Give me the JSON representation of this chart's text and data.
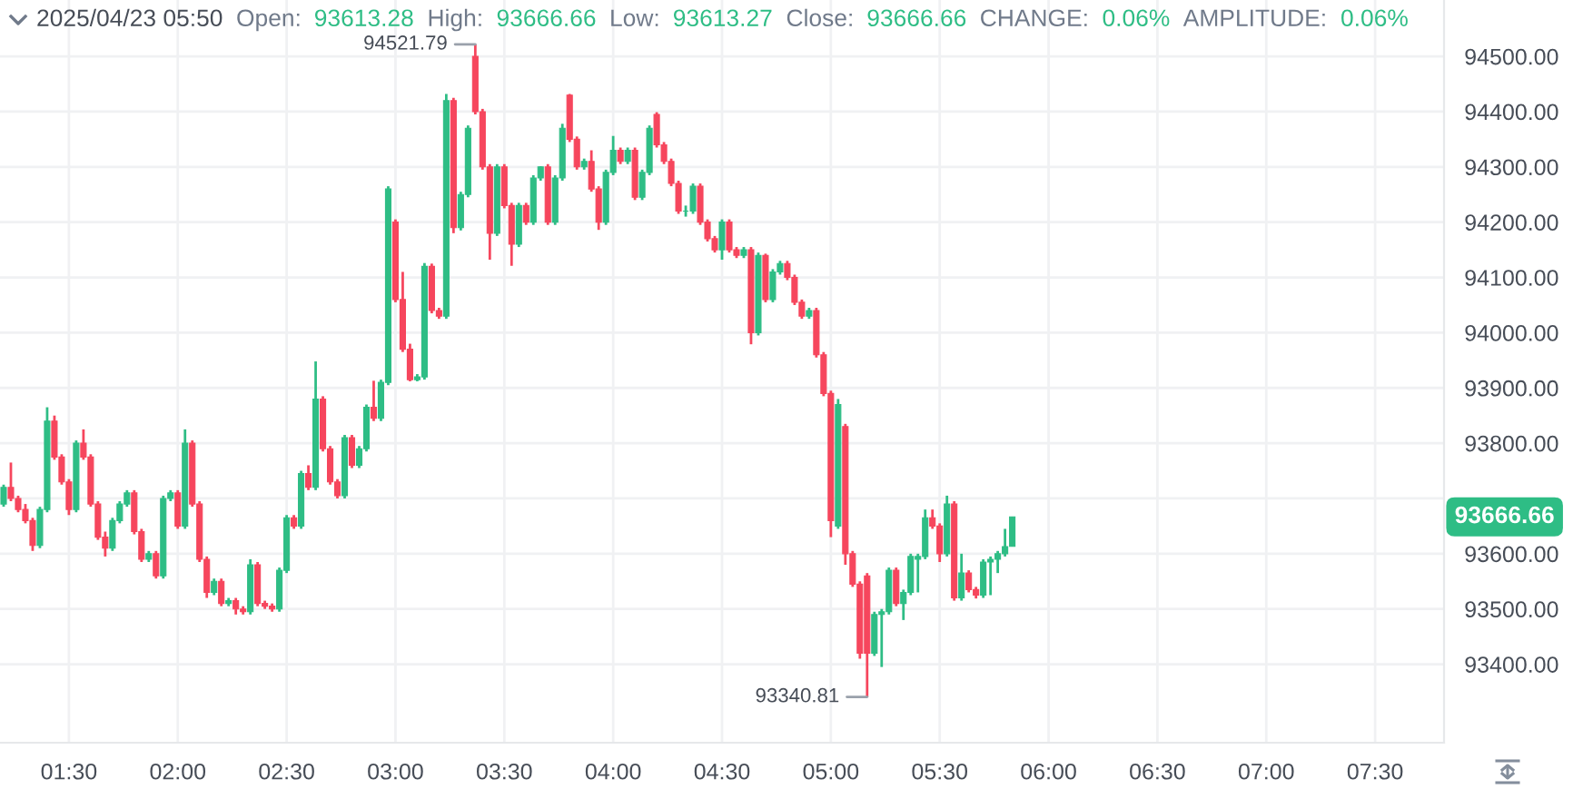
{
  "chart_data": {
    "type": "candlestick",
    "title": "2025/04/23 05:50",
    "x": [
      "2025-04-23T01:12",
      "2025-04-23T01:14",
      "2025-04-23T01:16",
      "2025-04-23T01:18",
      "2025-04-23T01:20",
      "2025-04-23T01:22",
      "2025-04-23T01:24",
      "2025-04-23T01:26",
      "2025-04-23T01:28",
      "2025-04-23T01:30",
      "2025-04-23T01:32",
      "2025-04-23T01:34",
      "2025-04-23T01:36",
      "2025-04-23T01:38",
      "2025-04-23T01:40",
      "2025-04-23T01:42",
      "2025-04-23T01:44",
      "2025-04-23T01:46",
      "2025-04-23T01:48",
      "2025-04-23T01:50",
      "2025-04-23T01:52",
      "2025-04-23T01:54",
      "2025-04-23T01:56",
      "2025-04-23T01:58",
      "2025-04-23T02:00",
      "2025-04-23T02:02",
      "2025-04-23T02:04",
      "2025-04-23T02:06",
      "2025-04-23T02:08",
      "2025-04-23T02:10",
      "2025-04-23T02:12",
      "2025-04-23T02:14",
      "2025-04-23T02:16",
      "2025-04-23T02:18",
      "2025-04-23T02:20",
      "2025-04-23T02:22",
      "2025-04-23T02:24",
      "2025-04-23T02:26",
      "2025-04-23T02:28",
      "2025-04-23T02:30",
      "2025-04-23T02:32",
      "2025-04-23T02:34",
      "2025-04-23T02:36",
      "2025-04-23T02:38",
      "2025-04-23T02:40",
      "2025-04-23T02:42",
      "2025-04-23T02:44",
      "2025-04-23T02:46",
      "2025-04-23T02:48",
      "2025-04-23T02:50",
      "2025-04-23T02:52",
      "2025-04-23T02:54",
      "2025-04-23T02:56",
      "2025-04-23T02:58",
      "2025-04-23T03:00",
      "2025-04-23T03:02",
      "2025-04-23T03:04",
      "2025-04-23T03:06",
      "2025-04-23T03:08",
      "2025-04-23T03:10",
      "2025-04-23T03:12",
      "2025-04-23T03:14",
      "2025-04-23T03:16",
      "2025-04-23T03:18",
      "2025-04-23T03:20",
      "2025-04-23T03:22",
      "2025-04-23T03:24",
      "2025-04-23T03:26",
      "2025-04-23T03:28",
      "2025-04-23T03:30",
      "2025-04-23T03:32",
      "2025-04-23T03:34",
      "2025-04-23T03:36",
      "2025-04-23T03:38",
      "2025-04-23T03:40",
      "2025-04-23T03:42",
      "2025-04-23T03:44",
      "2025-04-23T03:46",
      "2025-04-23T03:48",
      "2025-04-23T03:50",
      "2025-04-23T03:52",
      "2025-04-23T03:54",
      "2025-04-23T03:56",
      "2025-04-23T03:58",
      "2025-04-23T04:00",
      "2025-04-23T04:02",
      "2025-04-23T04:04",
      "2025-04-23T04:06",
      "2025-04-23T04:08",
      "2025-04-23T04:10",
      "2025-04-23T04:12",
      "2025-04-23T04:14",
      "2025-04-23T04:16",
      "2025-04-23T04:18",
      "2025-04-23T04:20",
      "2025-04-23T04:22",
      "2025-04-23T04:24",
      "2025-04-23T04:26",
      "2025-04-23T04:28",
      "2025-04-23T04:30",
      "2025-04-23T04:32",
      "2025-04-23T04:34",
      "2025-04-23T04:36",
      "2025-04-23T04:38",
      "2025-04-23T04:40",
      "2025-04-23T04:42",
      "2025-04-23T04:44",
      "2025-04-23T04:46",
      "2025-04-23T04:48",
      "2025-04-23T04:50",
      "2025-04-23T04:52",
      "2025-04-23T04:54",
      "2025-04-23T04:56",
      "2025-04-23T04:58",
      "2025-04-23T05:00",
      "2025-04-23T05:02",
      "2025-04-23T05:04",
      "2025-04-23T05:06",
      "2025-04-23T05:08",
      "2025-04-23T05:10",
      "2025-04-23T05:12",
      "2025-04-23T05:14",
      "2025-04-23T05:16",
      "2025-04-23T05:18",
      "2025-04-23T05:20",
      "2025-04-23T05:22",
      "2025-04-23T05:24",
      "2025-04-23T05:26",
      "2025-04-23T05:28",
      "2025-04-23T05:30",
      "2025-04-23T05:32",
      "2025-04-23T05:34",
      "2025-04-23T05:36",
      "2025-04-23T05:38",
      "2025-04-23T05:40",
      "2025-04-23T05:42",
      "2025-04-23T05:44",
      "2025-04-23T05:46",
      "2025-04-23T05:48",
      "2025-04-23T05:50"
    ],
    "ohlc": [
      [
        93690,
        93725,
        93685,
        93720
      ],
      [
        93720,
        93765,
        93695,
        93700
      ],
      [
        93700,
        93705,
        93675,
        93680
      ],
      [
        93680,
        93690,
        93655,
        93660
      ],
      [
        93660,
        93665,
        93605,
        93615
      ],
      [
        93615,
        93685,
        93610,
        93680
      ],
      [
        93680,
        93865,
        93675,
        93840
      ],
      [
        93840,
        93850,
        93770,
        93775
      ],
      [
        93775,
        93780,
        93725,
        93730
      ],
      [
        93730,
        93735,
        93670,
        93680
      ],
      [
        93680,
        93805,
        93675,
        93800
      ],
      [
        93800,
        93825,
        93770,
        93775
      ],
      [
        93775,
        93780,
        93685,
        93690
      ],
      [
        93690,
        93695,
        93625,
        93630
      ],
      [
        93630,
        93640,
        93595,
        93610
      ],
      [
        93610,
        93665,
        93605,
        93660
      ],
      [
        93660,
        93695,
        93655,
        93690
      ],
      [
        93690,
        93715,
        93685,
        93710
      ],
      [
        93710,
        93715,
        93635,
        93640
      ],
      [
        93640,
        93645,
        93585,
        93590
      ],
      [
        93590,
        93605,
        93585,
        93600
      ],
      [
        93600,
        93605,
        93555,
        93560
      ],
      [
        93560,
        93705,
        93555,
        93700
      ],
      [
        93700,
        93715,
        93695,
        93710
      ],
      [
        93710,
        93715,
        93645,
        93650
      ],
      [
        93650,
        93825,
        93645,
        93800
      ],
      [
        93800,
        93805,
        93685,
        93690
      ],
      [
        93690,
        93695,
        93585,
        93590
      ],
      [
        93590,
        93595,
        93520,
        93530
      ],
      [
        93530,
        93555,
        93525,
        93550
      ],
      [
        93550,
        93555,
        93505,
        93510
      ],
      [
        93510,
        93520,
        93505,
        93515
      ],
      [
        93515,
        93520,
        93490,
        93500
      ],
      [
        93500,
        93505,
        93490,
        93495
      ],
      [
        93495,
        93590,
        93490,
        93580
      ],
      [
        93580,
        93585,
        93505,
        93510
      ],
      [
        93510,
        93515,
        93500,
        93505
      ],
      [
        93505,
        93510,
        93495,
        93500
      ],
      [
        93500,
        93575,
        93495,
        93570
      ],
      [
        93570,
        93670,
        93565,
        93665
      ],
      [
        93665,
        93670,
        93645,
        93650
      ],
      [
        93650,
        93750,
        93645,
        93745
      ],
      [
        93745,
        93760,
        93715,
        93720
      ],
      [
        93720,
        93948,
        93715,
        93880
      ],
      [
        93880,
        93885,
        93785,
        93790
      ],
      [
        93790,
        93795,
        93725,
        93730
      ],
      [
        93730,
        93735,
        93700,
        93705
      ],
      [
        93705,
        93815,
        93700,
        93810
      ],
      [
        93810,
        93815,
        93755,
        93760
      ],
      [
        93760,
        93795,
        93755,
        93790
      ],
      [
        93790,
        93870,
        93785,
        93865
      ],
      [
        93865,
        93913,
        93840,
        93845
      ],
      [
        93845,
        93915,
        93840,
        93910
      ],
      [
        93910,
        94265,
        93905,
        94260
      ],
      [
        94200,
        94205,
        94055,
        94060
      ],
      [
        94060,
        94110,
        93965,
        93970
      ],
      [
        93970,
        93980,
        93912,
        93915
      ],
      [
        93915,
        93925,
        93912,
        93920
      ],
      [
        93920,
        94126,
        93915,
        94120
      ],
      [
        94120,
        94125,
        94035,
        94040
      ],
      [
        94040,
        94045,
        94025,
        94030
      ],
      [
        94030,
        94432,
        94025,
        94420
      ],
      [
        94420,
        94425,
        94180,
        94190
      ],
      [
        94190,
        94255,
        94185,
        94250
      ],
      [
        94250,
        94375,
        94245,
        94370
      ],
      [
        94500,
        94521.79,
        94395,
        94400
      ],
      [
        94400,
        94405,
        94295,
        94300
      ],
      [
        94300,
        94305,
        94132,
        94180
      ],
      [
        94180,
        94305,
        94175,
        94300
      ],
      [
        94300,
        94305,
        94225,
        94230
      ],
      [
        94230,
        94235,
        94121,
        94160
      ],
      [
        94160,
        94235,
        94155,
        94230
      ],
      [
        94230,
        94235,
        94195,
        94200
      ],
      [
        94200,
        94285,
        94195,
        94280
      ],
      [
        94280,
        94301,
        94275,
        94300
      ],
      [
        94300,
        94305,
        94195,
        94200
      ],
      [
        94200,
        94285,
        94195,
        94280
      ],
      [
        94280,
        94378,
        94275,
        94370
      ],
      [
        94430,
        94432,
        94345,
        94350
      ],
      [
        94350,
        94355,
        94295,
        94300
      ],
      [
        94300,
        94315,
        94295,
        94310
      ],
      [
        94310,
        94330,
        94255,
        94260
      ],
      [
        94260,
        94265,
        94186,
        94200
      ],
      [
        94200,
        94295,
        94195,
        94290
      ],
      [
        94290,
        94356,
        94285,
        94330
      ],
      [
        94330,
        94335,
        94305,
        94310
      ],
      [
        94310,
        94335,
        94305,
        94330
      ],
      [
        94330,
        94335,
        94240,
        94245
      ],
      [
        94245,
        94295,
        94240,
        94290
      ],
      [
        94290,
        94375,
        94285,
        94370
      ],
      [
        94395,
        94399,
        94335,
        94340
      ],
      [
        94340,
        94345,
        94305,
        94310
      ],
      [
        94310,
        94315,
        94265,
        94270
      ],
      [
        94270,
        94275,
        94215,
        94220
      ],
      [
        94220,
        94230,
        94210,
        94220
      ],
      [
        94220,
        94270,
        94215,
        94265
      ],
      [
        94265,
        94270,
        94195,
        94200
      ],
      [
        94200,
        94205,
        94165,
        94170
      ],
      [
        94170,
        94175,
        94145,
        94150
      ],
      [
        94150,
        94205,
        94132,
        94200
      ],
      [
        94200,
        94205,
        94145,
        94150
      ],
      [
        94150,
        94155,
        94135,
        94140
      ],
      [
        94140,
        94155,
        94135,
        94150
      ],
      [
        94150,
        94155,
        93979,
        94000
      ],
      [
        94000,
        94145,
        93995,
        94140
      ],
      [
        94140,
        94143,
        94055,
        94060
      ],
      [
        94060,
        94115,
        94055,
        94110
      ],
      [
        94110,
        94130,
        94105,
        94125
      ],
      [
        94125,
        94130,
        94095,
        94100
      ],
      [
        94100,
        94105,
        94050,
        94055
      ],
      [
        94055,
        94060,
        94025,
        94030
      ],
      [
        94030,
        94045,
        94025,
        94040
      ],
      [
        94040,
        94045,
        93955,
        93960
      ],
      [
        93960,
        93965,
        93885,
        93890
      ],
      [
        93890,
        93895,
        93630,
        93660
      ],
      [
        93650,
        93880,
        93645,
        93870
      ],
      [
        93830,
        93835,
        93580,
        93600
      ],
      [
        93600,
        93605,
        93540,
        93545
      ],
      [
        93545,
        93550,
        93410,
        93420
      ],
      [
        93560,
        93565,
        93340.81,
        93420
      ],
      [
        93420,
        93495,
        93415,
        93490
      ],
      [
        93490,
        93500,
        93395,
        93495
      ],
      [
        93495,
        93575,
        93490,
        93570
      ],
      [
        93570,
        93575,
        93505,
        93510
      ],
      [
        93510,
        93535,
        93480,
        93530
      ],
      [
        93530,
        93600,
        93525,
        93595
      ],
      [
        93590,
        93600,
        93530,
        93595
      ],
      [
        93595,
        93680,
        93590,
        93665
      ],
      [
        93665,
        93680,
        93645,
        93650
      ],
      [
        93650,
        93655,
        93585,
        93600
      ],
      [
        93600,
        93705,
        93595,
        93690
      ],
      [
        93690,
        93695,
        93515,
        93520
      ],
      [
        93520,
        93600,
        93515,
        93565
      ],
      [
        93565,
        93570,
        93530,
        93535
      ],
      [
        93535,
        93540,
        93519,
        93525
      ],
      [
        93525,
        93590,
        93520,
        93585
      ],
      [
        93585,
        93595,
        93525,
        93590
      ],
      [
        93590,
        93605,
        93565,
        93600
      ],
      [
        93600,
        93645,
        93595,
        93613
      ],
      [
        93613.28,
        93666.66,
        93613.27,
        93666.66
      ]
    ],
    "colors": [
      "#2ebd85",
      "#f6465d",
      "#f6465d",
      "#f6465d",
      "#f6465d",
      "#2ebd85",
      "#2ebd85",
      "#f6465d",
      "#f6465d",
      "#f6465d",
      "#2ebd85",
      "#f6465d",
      "#f6465d",
      "#f6465d",
      "#f6465d",
      "#2ebd85",
      "#2ebd85",
      "#2ebd85",
      "#f6465d",
      "#f6465d",
      "#2ebd85",
      "#f6465d",
      "#2ebd85",
      "#2ebd85",
      "#f6465d",
      "#2ebd85",
      "#f6465d",
      "#f6465d",
      "#f6465d",
      "#2ebd85",
      "#f6465d",
      "#2ebd85",
      "#f6465d",
      "#f6465d",
      "#2ebd85",
      "#f6465d",
      "#f6465d",
      "#f6465d",
      "#2ebd85",
      "#2ebd85",
      "#f6465d",
      "#2ebd85",
      "#f6465d",
      "#2ebd85",
      "#f6465d",
      "#f6465d",
      "#f6465d",
      "#2ebd85",
      "#f6465d",
      "#2ebd85",
      "#2ebd85",
      "#f6465d",
      "#2ebd85",
      "#2ebd85",
      "#f6465d",
      "#f6465d",
      "#f6465d",
      "#2ebd85",
      "#2ebd85",
      "#f6465d",
      "#f6465d",
      "#2ebd85",
      "#f6465d",
      "#2ebd85",
      "#2ebd85",
      "#f6465d",
      "#f6465d",
      "#f6465d",
      "#2ebd85",
      "#f6465d",
      "#f6465d",
      "#2ebd85",
      "#f6465d",
      "#2ebd85",
      "#2ebd85",
      "#f6465d",
      "#2ebd85",
      "#2ebd85",
      "#f6465d",
      "#f6465d",
      "#2ebd85",
      "#f6465d",
      "#f6465d",
      "#2ebd85",
      "#2ebd85",
      "#f6465d",
      "#2ebd85",
      "#f6465d",
      "#2ebd85",
      "#2ebd85",
      "#f6465d",
      "#f6465d",
      "#f6465d",
      "#f6465d",
      "#2ebd85",
      "#2ebd85",
      "#f6465d",
      "#f6465d",
      "#f6465d",
      "#2ebd85",
      "#f6465d",
      "#f6465d",
      "#2ebd85",
      "#f6465d",
      "#2ebd85",
      "#f6465d",
      "#2ebd85",
      "#2ebd85",
      "#f6465d",
      "#f6465d",
      "#f6465d",
      "#2ebd85",
      "#f6465d",
      "#f6465d",
      "#f6465d",
      "#2ebd85",
      "#f6465d",
      "#f6465d",
      "#f6465d",
      "#f6465d",
      "#2ebd85",
      "#2ebd85",
      "#2ebd85",
      "#f6465d",
      "#2ebd85",
      "#2ebd85",
      "#2ebd85",
      "#2ebd85",
      "#f6465d",
      "#f6465d",
      "#2ebd85",
      "#f6465d",
      "#2ebd85",
      "#f6465d",
      "#f6465d",
      "#2ebd85",
      "#2ebd85",
      "#2ebd85",
      "#2ebd85",
      "#2ebd85"
    ],
    "xlim": [
      "2025-04-23T01:11",
      "2025-04-23T07:49"
    ],
    "xticks": [
      {
        "value": "2025-04-23T01:30",
        "label": "01:30"
      },
      {
        "value": "2025-04-23T02:00",
        "label": "02:00"
      },
      {
        "value": "2025-04-23T02:30",
        "label": "02:30"
      },
      {
        "value": "2025-04-23T03:00",
        "label": "03:00"
      },
      {
        "value": "2025-04-23T03:30",
        "label": "03:30"
      },
      {
        "value": "2025-04-23T04:00",
        "label": "04:00"
      },
      {
        "value": "2025-04-23T04:30",
        "label": "04:30"
      },
      {
        "value": "2025-04-23T05:00",
        "label": "05:00"
      },
      {
        "value": "2025-04-23T05:30",
        "label": "05:30"
      },
      {
        "value": "2025-04-23T06:00",
        "label": "06:00"
      },
      {
        "value": "2025-04-23T06:30",
        "label": "06:30"
      },
      {
        "value": "2025-04-23T07:00",
        "label": "07:00"
      },
      {
        "value": "2025-04-23T07:30",
        "label": "07:30"
      }
    ],
    "ylim": [
      93258,
      94602
    ],
    "yticks": [
      {
        "value": 93400,
        "label": "93400.00"
      },
      {
        "value": 93500,
        "label": "93500.00"
      },
      {
        "value": 93600,
        "label": "93600.00"
      },
      {
        "value": 93700,
        "label": null
      },
      {
        "value": 93800,
        "label": "93800.00"
      },
      {
        "value": 93900,
        "label": "93900.00"
      },
      {
        "value": 94000,
        "label": "94000.00"
      },
      {
        "value": 94100,
        "label": "94100.00"
      },
      {
        "value": 94200,
        "label": "94200.00"
      },
      {
        "value": 94300,
        "label": "94300.00"
      },
      {
        "value": 94400,
        "label": "94400.00"
      },
      {
        "value": 94500,
        "label": "94500.00"
      }
    ],
    "grid": true,
    "annotations": [
      "Open:",
      "93613.28",
      "High:",
      "93666.66",
      "Low:",
      "93613.27",
      "Close:",
      "93666.66",
      "CHANGE:",
      "0.06%",
      "AMPLITUDE:",
      "0.06%",
      "93666.66",
      {
        "text": "94521.79",
        "x": "2025-04-23T03:22",
        "y": 94521.79
      },
      {
        "text": "93340.81",
        "x": "2025-04-23T05:10",
        "y": 93340.81
      }
    ]
  }
}
